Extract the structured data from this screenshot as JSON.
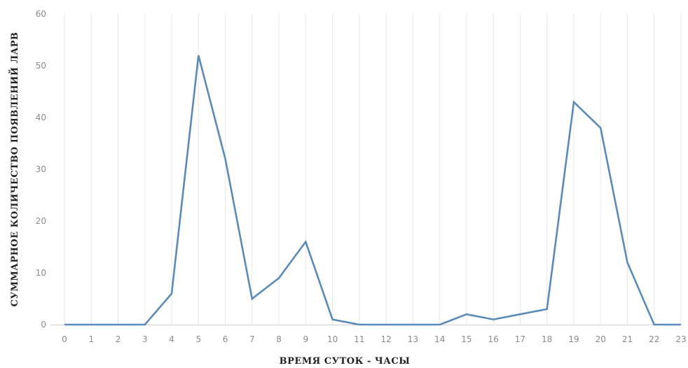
{
  "chart_data": {
    "type": "line",
    "title": "",
    "xlabel": "ВРЕМЯ СУТОК - ЧАСЫ",
    "ylabel": "СУММАРНОЕ КОЛИЧЕСТВО ПОЯВЛЕНИЙ ЛАРВ",
    "ylim": [
      0,
      60
    ],
    "yticks": [
      "0",
      "10",
      "20",
      "30",
      "40",
      "50",
      "60"
    ],
    "categories": [
      "0",
      "1",
      "2",
      "3",
      "4",
      "5",
      "6",
      "7",
      "8",
      "9",
      "10",
      "11",
      "12",
      "13",
      "14",
      "15",
      "16",
      "17",
      "18",
      "19",
      "20",
      "21",
      "22",
      "23"
    ],
    "series": [
      {
        "values": [
          0,
          0,
          0,
          0,
          6,
          52,
          32,
          5,
          9,
          16,
          1,
          0,
          0,
          0,
          0,
          2,
          1,
          2,
          3,
          43,
          38,
          12,
          0,
          0
        ]
      }
    ],
    "grid": "vertical",
    "legend": "none",
    "colors": {
      "line": "#5a8ab8",
      "grid": "#e6e6e6",
      "tick_text": "#8a8a8a",
      "axis_title": "#222222"
    }
  }
}
